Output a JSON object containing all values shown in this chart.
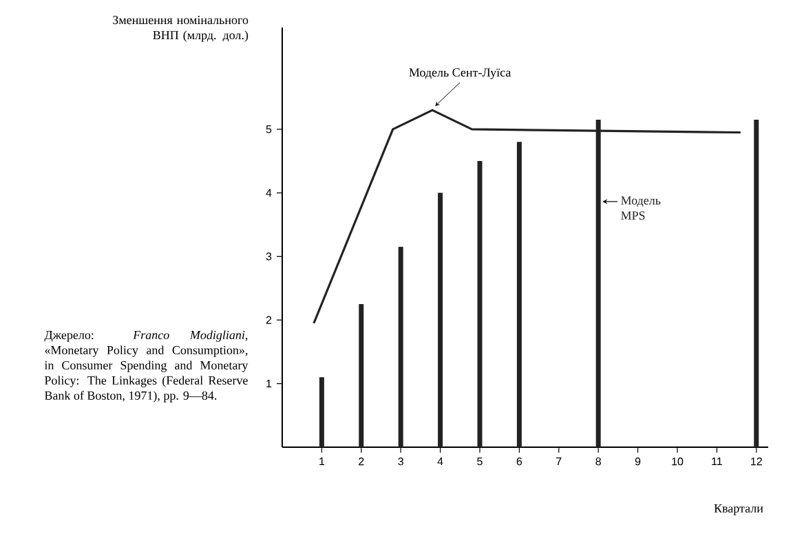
{
  "chart_data": {
    "type": "bar",
    "xlabel": "Квартали",
    "ylabel": "Зменшення номінального ВНП (млрд. дол.)",
    "x": [
      1,
      2,
      3,
      4,
      5,
      6,
      8,
      12
    ],
    "series": [
      {
        "name": "Модель MPS",
        "color": "#222222",
        "values": [
          1.1,
          2.25,
          3.15,
          4.0,
          4.5,
          4.8,
          5.15,
          5.15
        ]
      },
      {
        "name": "Модель Сент-Луїса",
        "type": "line",
        "color": "#222222",
        "x": [
          0.8,
          2.8,
          3.8,
          4.8,
          11.6
        ],
        "values": [
          1.95,
          5.0,
          5.3,
          5.0,
          4.95
        ]
      }
    ],
    "xlim": [
      0,
      12.3
    ],
    "ylim": [
      0,
      6.6
    ],
    "xticks": [
      1,
      2,
      3,
      4,
      5,
      6,
      7,
      8,
      9,
      10,
      11,
      12
    ],
    "yticks": [
      1,
      2,
      3,
      4,
      5
    ],
    "annotations": [
      "Джерело: *Franco Modigliani*, «Monetary Policy and Consumption», in Consumer Spending and Monetary Policy: The Linkages (Federal Reserve Bank of Boston, 1971), pp. 9—84."
    ]
  }
}
